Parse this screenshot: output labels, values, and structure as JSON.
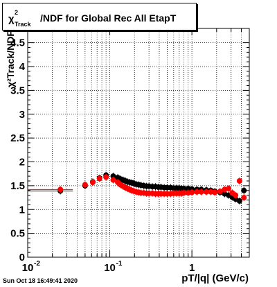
{
  "title": {
    "symbol": "χ",
    "superscript": "2",
    "subscript": "Track",
    "text": "/NDF for Global Rec All EtapT"
  },
  "timestamp": "Sun Oct 18 16:49:41 2020",
  "chart_data": {
    "type": "scatter",
    "xscale": "log",
    "xlim": [
      0.01,
      5.0
    ],
    "ylim": [
      0,
      4.8
    ],
    "grid": true,
    "xlabel": "pT/|q| (GeV/c)",
    "ylabel": "χ²Track/NDF",
    "y_ticks": [
      0,
      0.5,
      1,
      1.5,
      2,
      2.5,
      3,
      3.5,
      4,
      4.5
    ],
    "y_tick_labels": [
      "0",
      "0.5",
      "1",
      "1.5",
      "2",
      "2.5",
      "3",
      "3.5",
      "4",
      "4.5"
    ],
    "x_major_ticks": [
      0.01,
      0.1,
      1
    ],
    "x_tick_labels": [
      "10",
      "10",
      "1"
    ],
    "x_tick_exponents": [
      "-2",
      "-1",
      ""
    ],
    "series": [
      {
        "color": "#000000",
        "x": [
          0.025,
          0.05,
          0.062,
          0.075,
          0.09,
          0.11,
          0.125,
          0.135,
          0.145,
          0.155,
          0.165,
          0.175,
          0.185,
          0.195,
          0.21,
          0.225,
          0.24,
          0.26,
          0.28,
          0.3,
          0.33,
          0.36,
          0.39,
          0.42,
          0.46,
          0.5,
          0.55,
          0.6,
          0.65,
          0.7,
          0.75,
          0.8,
          0.9,
          1.0,
          1.15,
          1.3,
          1.5,
          1.7,
          1.9,
          2.2,
          2.5,
          2.8,
          3.1,
          3.4,
          3.8,
          4.3
        ],
        "y": [
          1.39,
          1.5,
          1.58,
          1.66,
          1.72,
          1.7,
          1.67,
          1.64,
          1.62,
          1.6,
          1.58,
          1.57,
          1.56,
          1.55,
          1.53,
          1.52,
          1.51,
          1.5,
          1.49,
          1.49,
          1.48,
          1.48,
          1.47,
          1.47,
          1.46,
          1.46,
          1.46,
          1.45,
          1.45,
          1.45,
          1.44,
          1.44,
          1.44,
          1.43,
          1.42,
          1.42,
          1.41,
          1.4,
          1.38,
          1.36,
          1.33,
          1.3,
          1.26,
          1.22,
          1.18,
          1.4
        ],
        "xerr_first": [
          0.01,
          0.0355
        ]
      },
      {
        "color": "#ff0000",
        "x": [
          0.025,
          0.05,
          0.062,
          0.075,
          0.09,
          0.11,
          0.125,
          0.135,
          0.145,
          0.155,
          0.165,
          0.175,
          0.185,
          0.195,
          0.21,
          0.225,
          0.24,
          0.26,
          0.28,
          0.3,
          0.33,
          0.36,
          0.39,
          0.42,
          0.46,
          0.5,
          0.55,
          0.6,
          0.65,
          0.7,
          0.75,
          0.8,
          0.9,
          1.0,
          1.15,
          1.3,
          1.5,
          1.7,
          1.9,
          2.2,
          2.5,
          2.8,
          3.1,
          3.4,
          3.8,
          4.3
        ],
        "y": [
          1.42,
          1.52,
          1.57,
          1.65,
          1.68,
          1.62,
          1.57,
          1.52,
          1.49,
          1.46,
          1.44,
          1.42,
          1.4,
          1.39,
          1.37,
          1.36,
          1.35,
          1.35,
          1.34,
          1.34,
          1.34,
          1.33,
          1.33,
          1.33,
          1.33,
          1.33,
          1.33,
          1.34,
          1.34,
          1.34,
          1.34,
          1.35,
          1.35,
          1.36,
          1.37,
          1.37,
          1.37,
          1.37,
          1.36,
          1.38,
          1.42,
          1.44,
          1.35,
          1.3,
          1.6,
          1.25
        ],
        "xerr_first": [
          0.01,
          0.0355
        ]
      }
    ]
  }
}
